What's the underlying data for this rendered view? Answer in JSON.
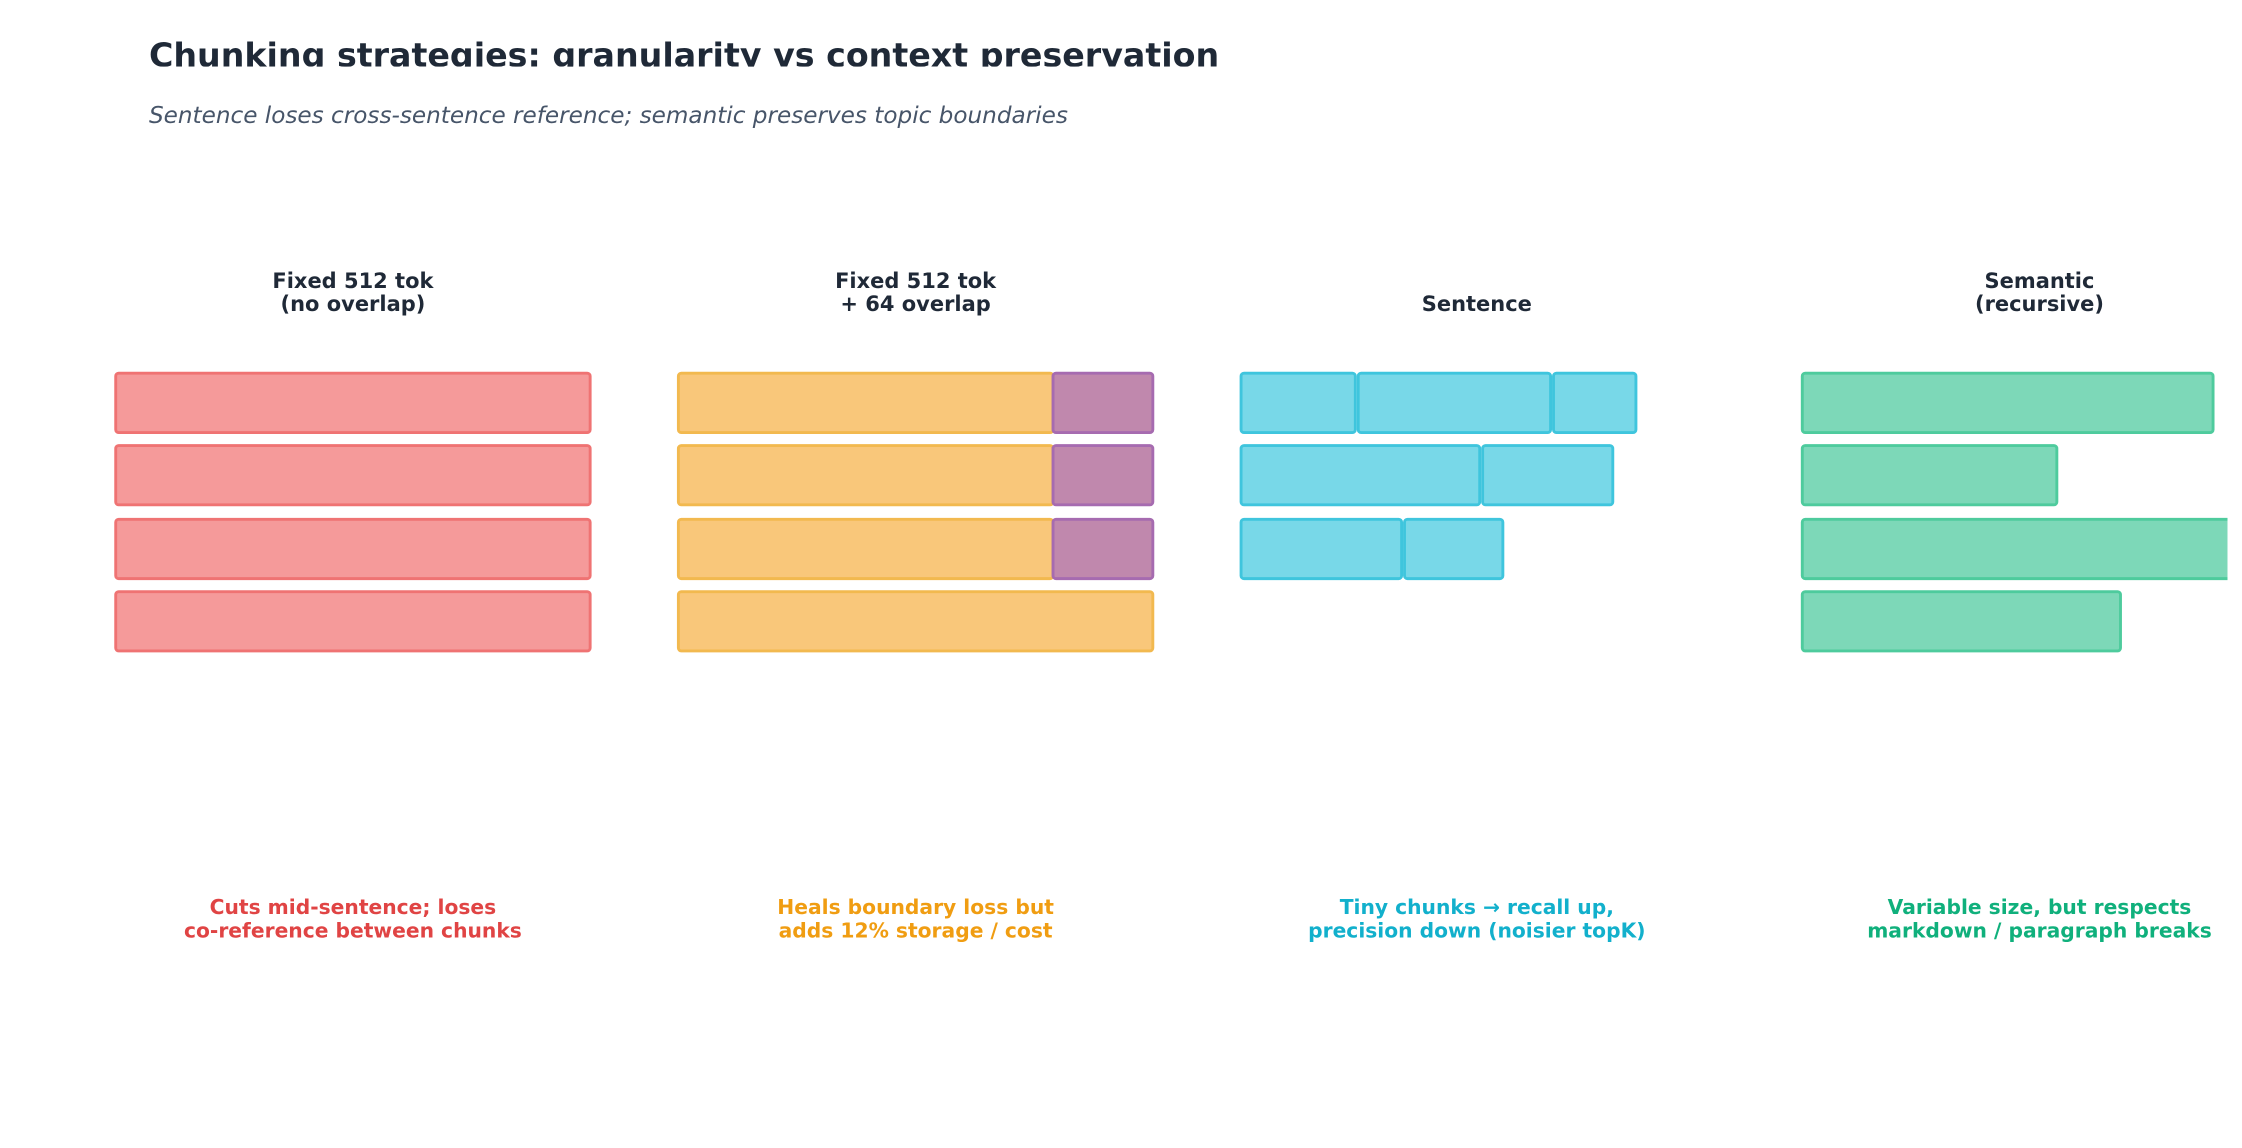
{
  "header": {
    "title": "Chunking strategies: granularity vs context preservation",
    "subtitle": "Sentence loses cross-sentence reference; semantic preserves topic boundaries"
  },
  "panels": [
    {
      "title_lines": [
        "Fixed 512 tok",
        "(no overlap)"
      ],
      "caption_lines": [
        "Cuts mid-sentence; loses",
        "co-reference between chunks"
      ]
    },
    {
      "title_lines": [
        "Fixed 512 tok",
        "+ 64 overlap"
      ],
      "caption_lines": [
        "Heals boundary loss but",
        "adds 12% storage / cost"
      ]
    },
    {
      "title_lines": [
        "Sentence"
      ],
      "caption_lines": [
        "Tiny chunks → recall up,",
        "precision down (noisier topK)"
      ]
    },
    {
      "title_lines": [
        "Semantic",
        "(recursive)"
      ],
      "caption_lines": [
        "Variable size, but respects",
        "markdown / paragraph breaks"
      ]
    }
  ]
}
